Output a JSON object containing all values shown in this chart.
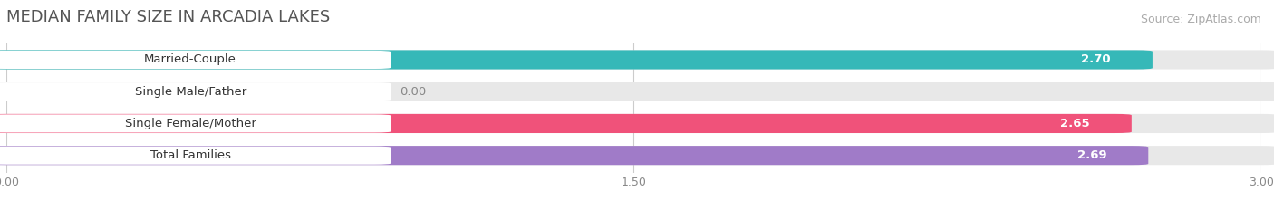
{
  "title": "MEDIAN FAMILY SIZE IN ARCADIA LAKES",
  "source": "Source: ZipAtlas.com",
  "categories": [
    "Married-Couple",
    "Single Male/Father",
    "Single Female/Mother",
    "Total Families"
  ],
  "values": [
    2.7,
    0.0,
    2.65,
    2.69
  ],
  "bar_colors": [
    "#36b8b8",
    "#9aaee8",
    "#f0527a",
    "#a07bc8"
  ],
  "xlim": [
    0,
    3.0
  ],
  "xticks": [
    0.0,
    1.5,
    3.0
  ],
  "xtick_labels": [
    "0.00",
    "1.50",
    "3.00"
  ],
  "background_color": "#ffffff",
  "bar_bg_color": "#e8e8e8",
  "title_fontsize": 13,
  "source_fontsize": 9,
  "label_fontsize": 9.5,
  "value_fontsize": 9.5
}
